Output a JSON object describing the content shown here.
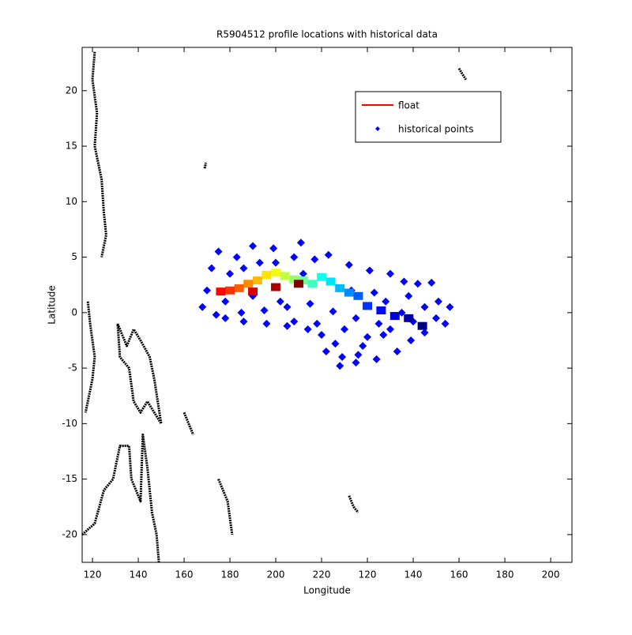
{
  "chart_data": {
    "type": "scatter",
    "title": "R5904512 profile locations with historical data",
    "xlabel": "Longitude",
    "ylabel": "Latitude",
    "xlim": [
      115.5,
      329.3
    ],
    "ylim": [
      -22.5,
      23.9
    ],
    "xticks": [
      120,
      140,
      160,
      180,
      200,
      220,
      {
        "value": 240,
        "label": "120"
      },
      {
        "value": 260,
        "label": "140"
      },
      {
        "value": 280,
        "label": "160"
      },
      {
        "value": 300,
        "label": "180"
      },
      {
        "value": 320,
        "label": "200"
      }
    ],
    "yticks": [
      -20,
      -15,
      -10,
      -5,
      0,
      5,
      10,
      15,
      20
    ],
    "legend": "northeast",
    "series": [
      {
        "name": "float",
        "color": "#ff0000",
        "colormap": "jet",
        "x": [
          264,
          258,
          252,
          246,
          240,
          236,
          232,
          228,
          224,
          220,
          216,
          212,
          208,
          204,
          200,
          196,
          192,
          188,
          184,
          180,
          176,
          190,
          200,
          210
        ],
        "values": [
          -1.2,
          -0.5,
          -0.3,
          0.2,
          0.6,
          1.5,
          1.8,
          2.2,
          2.8,
          3.2,
          2.6,
          2.9,
          3.0,
          3.3,
          3.6,
          3.4,
          2.9,
          2.6,
          2.2,
          2.0,
          1.9,
          1.9,
          2.3,
          2.6
        ]
      },
      {
        "name": "historical points",
        "color": "#0000ff",
        "x": [
          170,
          172,
          175,
          178,
          180,
          183,
          186,
          190,
          193,
          196,
          199,
          202,
          205,
          208,
          211,
          214,
          217,
          220,
          223,
          226,
          229,
          232,
          235,
          238,
          241,
          244,
          247,
          250,
          253,
          256,
          259,
          262,
          265,
          268,
          271,
          274,
          276,
          168,
          174,
          185,
          195,
          205,
          215,
          225,
          235,
          245,
          255,
          265,
          230,
          240,
          250,
          260,
          222,
          228,
          236,
          186,
          200,
          212,
          178,
          190,
          208,
          218,
          248,
          258,
          270,
          233,
          243
        ],
        "values": [
          2,
          4,
          5.5,
          -0.5,
          3.5,
          5,
          -0.8,
          6,
          4.5,
          -1,
          5.8,
          1,
          -1.2,
          5,
          6.3,
          -1.5,
          4.8,
          -2,
          5.2,
          -2.8,
          -4,
          4.3,
          -4.5,
          -3,
          3.8,
          -4.2,
          -2,
          3.5,
          -3.5,
          2.8,
          -2.5,
          2.6,
          -1.8,
          2.7,
          1,
          -1,
          0.5,
          0.5,
          -0.2,
          0,
          0.2,
          0.5,
          0.8,
          0.1,
          -0.5,
          -1,
          0,
          0.5,
          -1.5,
          -2.2,
          -1.5,
          -0.8,
          -3.5,
          -4.8,
          -3.8,
          4,
          4.5,
          3.5,
          1,
          1.5,
          -0.8,
          -1,
          1,
          1.5,
          -0.5,
          2,
          1.8
        ]
      }
    ],
    "coastline": {
      "color": "#000000",
      "x": [
        121,
        120,
        122,
        121,
        124,
        125,
        126,
        124,
        null,
        131,
        135,
        138,
        141,
        145,
        147,
        150,
        147,
        144,
        141,
        138,
        136,
        132,
        131,
        null,
        115.5,
        121,
        125,
        129,
        132,
        136,
        137,
        141,
        142,
        144,
        146,
        148,
        149,
        null,
        118,
        119,
        121,
        120,
        117,
        null,
        160,
        162,
        164,
        null,
        175,
        179,
        181,
        null,
        232,
        234,
        236,
        null,
        169,
        169.5,
        null,
        280,
        283
      ],
      "values": [
        23.5,
        21,
        18,
        15,
        12,
        9,
        7,
        5,
        null,
        -1,
        -3,
        -1.5,
        -2.5,
        -4,
        -6,
        -10,
        -9,
        -8,
        -9,
        -8,
        -5,
        -4,
        -1,
        null,
        -20,
        -19,
        -16,
        -15,
        -12,
        -12,
        -15,
        -17,
        -11,
        -14,
        -18,
        -20,
        -22.5,
        null,
        1,
        -1,
        -4,
        -6,
        -9,
        null,
        -9,
        -10,
        -11,
        null,
        -15,
        -17,
        -20,
        null,
        -16.5,
        -17.5,
        -18,
        null,
        13,
        13.5,
        null,
        22,
        21
      ]
    }
  }
}
